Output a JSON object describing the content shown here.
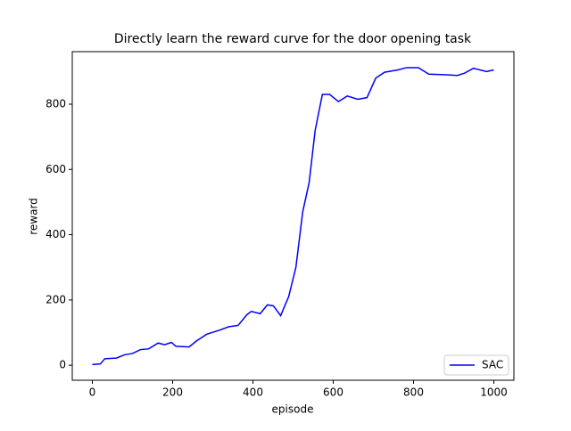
{
  "chart_data": {
    "type": "line",
    "title": "Directly learn the reward curve for the door opening task",
    "x_label": "episode",
    "y_label": "reward",
    "xlim": [
      -50,
      1050
    ],
    "ylim": [
      -46,
      961
    ],
    "xticks": [
      0,
      200,
      400,
      600,
      800,
      1000
    ],
    "yticks": [
      0,
      200,
      400,
      600,
      800
    ],
    "legend": "lower right",
    "x": [
      0,
      20,
      31,
      60,
      80,
      100,
      120,
      140,
      164,
      180,
      197,
      208,
      241,
      260,
      285,
      318,
      340,
      363,
      385,
      396,
      418,
      436,
      451,
      469,
      489,
      507,
      524,
      540,
      555,
      573,
      591,
      613,
      635,
      661,
      684,
      706,
      728,
      761,
      783,
      812,
      838,
      883,
      909,
      927,
      949,
      982,
      1000
    ],
    "series": [
      {
        "name": "SAC",
        "color": "#0000ff",
        "values": [
          2,
          4,
          20,
          22,
          32,
          36,
          48,
          50,
          68,
          63,
          70,
          58,
          56,
          75,
          95,
          108,
          118,
          122,
          155,
          165,
          158,
          185,
          182,
          152,
          210,
          300,
          470,
          560,
          720,
          830,
          830,
          808,
          825,
          815,
          820,
          880,
          898,
          905,
          912,
          912,
          892,
          890,
          888,
          895,
          910,
          900,
          905
        ]
      }
    ]
  }
}
